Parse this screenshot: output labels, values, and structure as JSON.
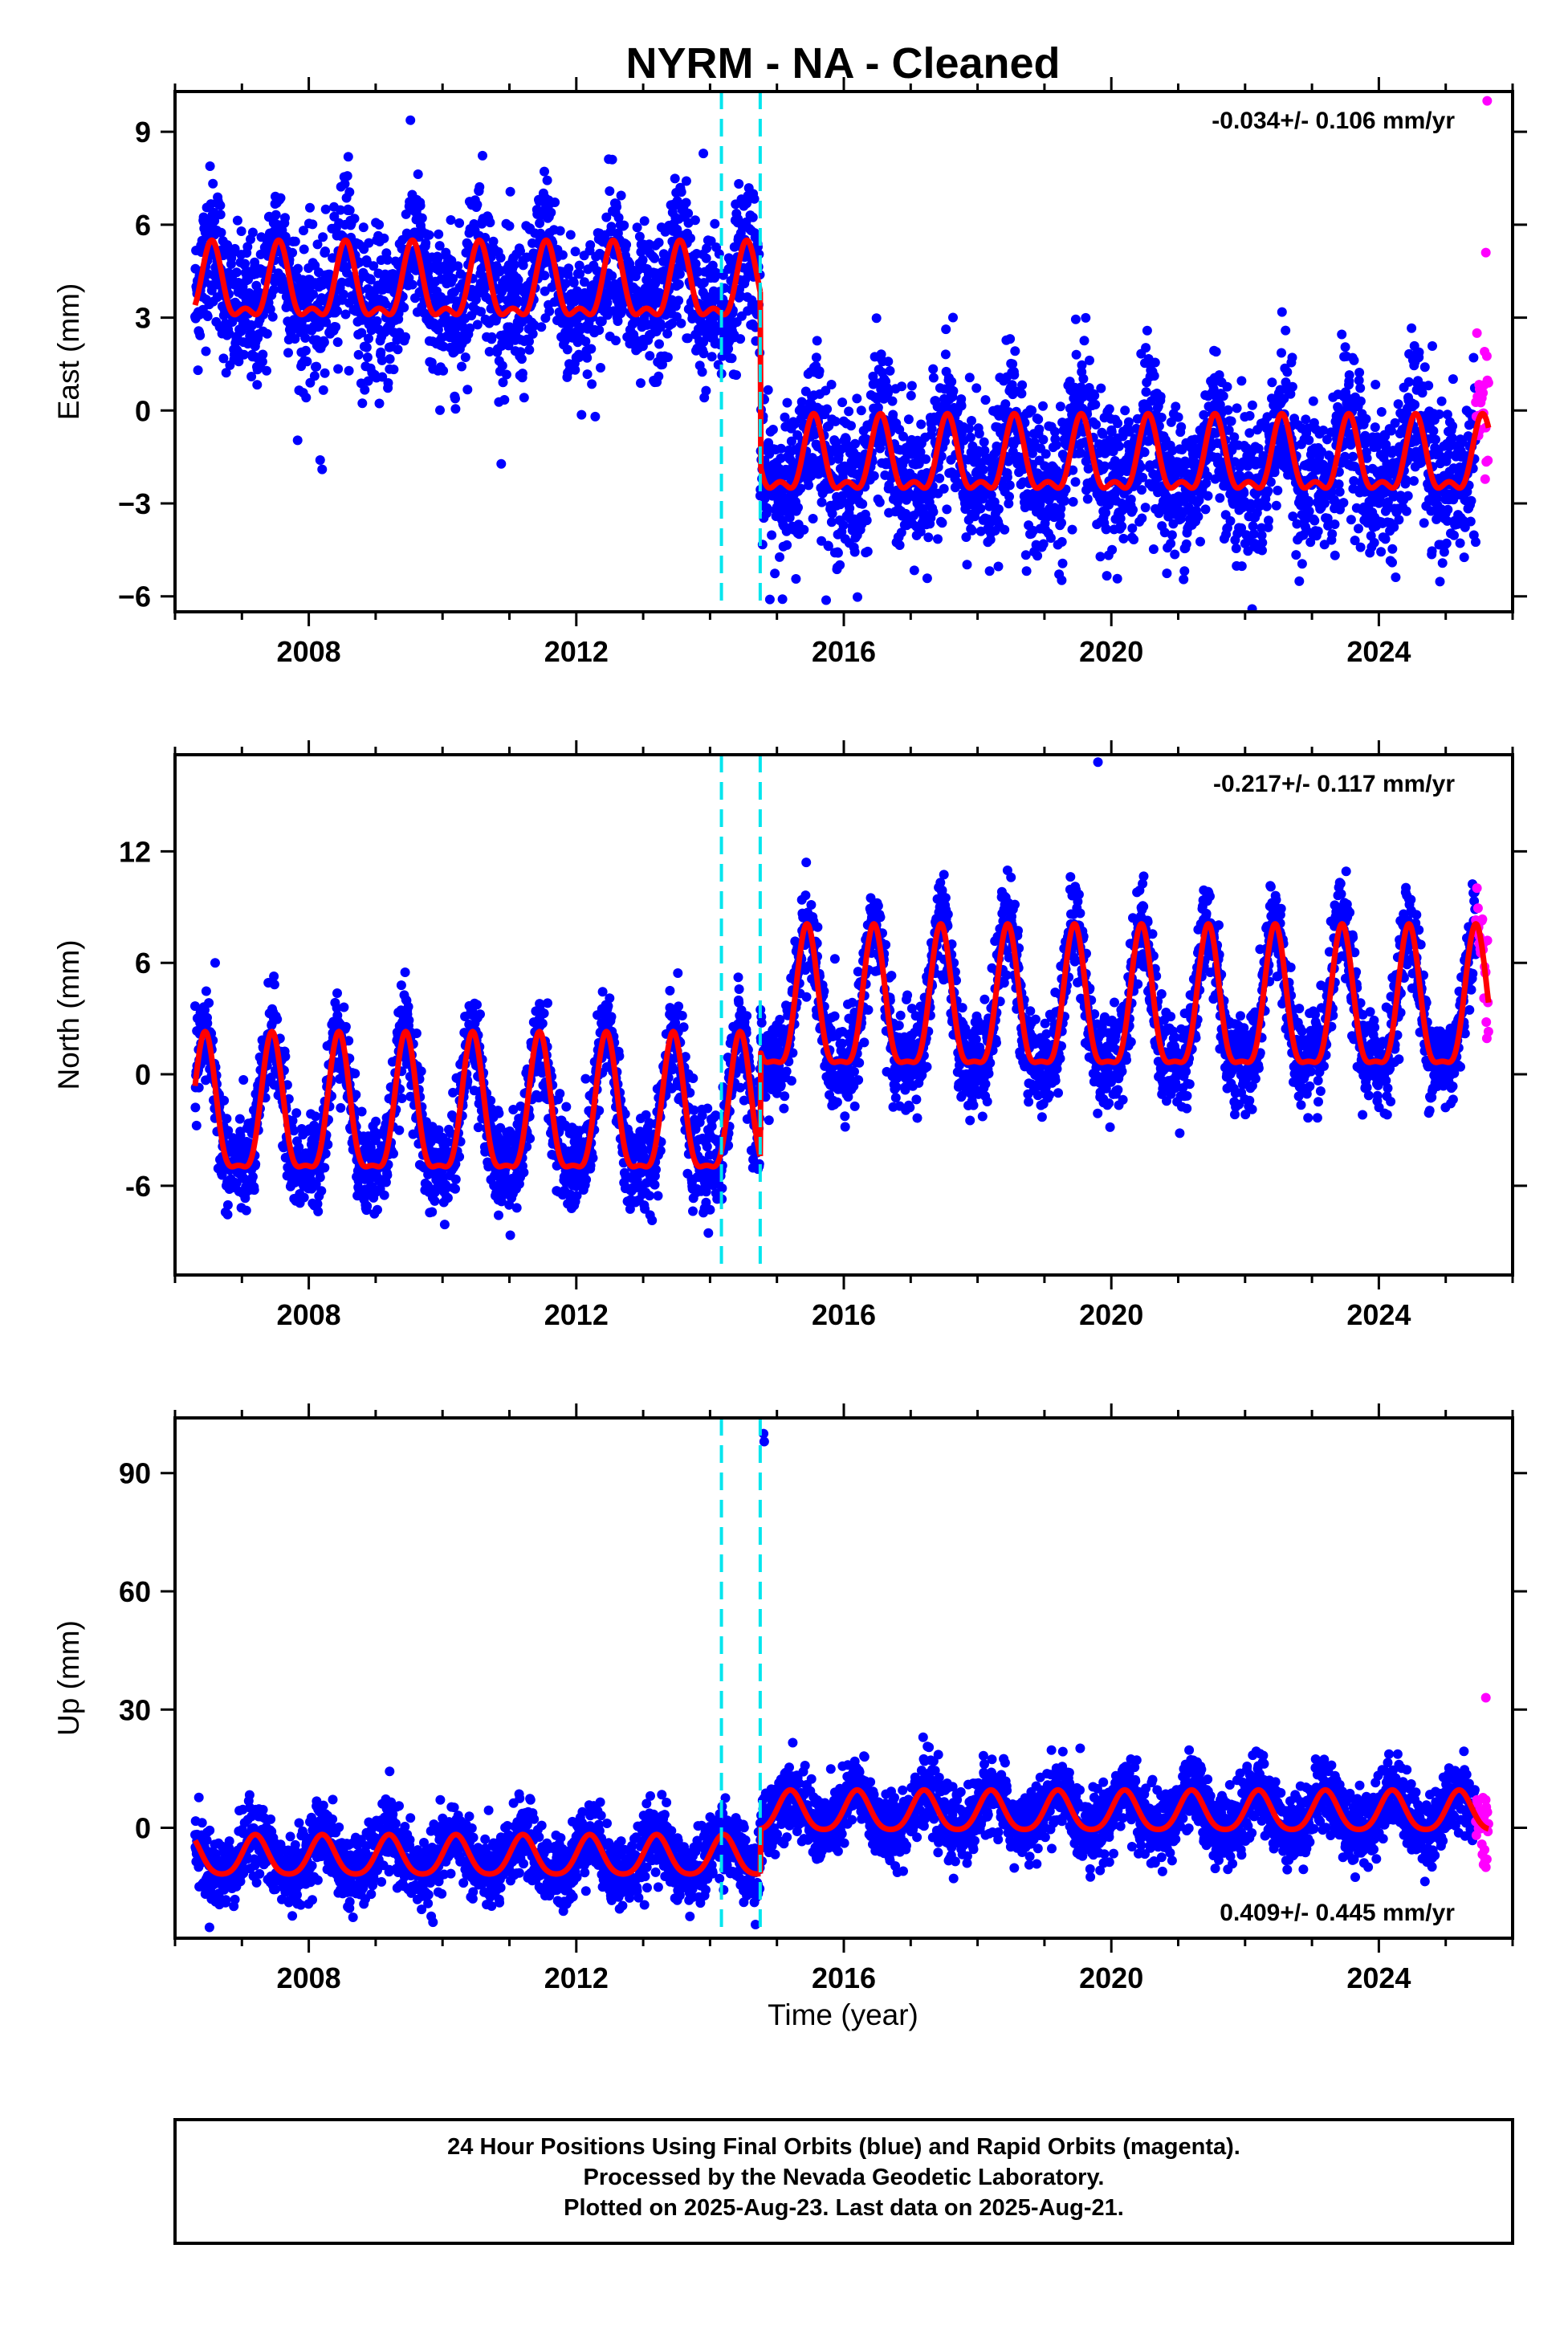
{
  "title": "NYRM  - NA - Cleaned",
  "xlabel": "Time (year)",
  "footer": [
    "24 Hour Positions Using Final Orbits (blue) and Rapid Orbits (magenta).",
    "Processed by the Nevada Geodetic Laboratory.",
    "Plotted on 2025-Aug-23. Last data on 2025-Aug-21."
  ],
  "colors": {
    "final": "#0000ff",
    "rapid": "#ff00ff",
    "model": "#ff0000",
    "steps": "#00e5ee"
  },
  "chart_data": [
    {
      "type": "scatter",
      "id": "east",
      "ylabel": "East (mm)",
      "rate": "-0.034+/- 0.106 mm/yr",
      "rate_position": "top-right",
      "xlim": [
        2006.0,
        2026.0
      ],
      "ylim": [
        -6.5,
        10.3
      ],
      "xticks": [
        2008,
        2012,
        2016,
        2020,
        2024
      ],
      "yticks": [
        -6,
        -3,
        0,
        3,
        6,
        9
      ],
      "ytick_labels": [
        "−6",
        "−3",
        "0",
        "3",
        "6",
        "9"
      ],
      "step_lines": [
        2014.17,
        2014.75
      ],
      "data_start": 2006.3,
      "data_end": 2025.64,
      "rapid_start": 2025.45,
      "model_segments": [
        {
          "x0": 2006.3,
          "x1": 2014.75,
          "mean": 3.9,
          "annual_amp": 1.1,
          "semiannual_amp": 0.5,
          "phase": 0.55
        },
        {
          "x0": 2014.75,
          "x1": 2025.64,
          "mean": -1.7,
          "annual_amp": 1.1,
          "semiannual_amp": 0.5,
          "phase": 0.55
        }
      ],
      "scatter_sd": 1.2,
      "outliers": [
        [
          2008.17,
          -1.6
        ],
        [
          2008.2,
          -1.9
        ],
        [
          2013.9,
          8.3
        ],
        [
          2025.62,
          10.0
        ],
        [
          2025.6,
          5.1
        ]
      ]
    },
    {
      "type": "scatter",
      "id": "north",
      "ylabel": "North (mm)",
      "rate": "-0.217+/- 0.117 mm/yr",
      "rate_position": "top-right",
      "xlim": [
        2006.0,
        2026.0
      ],
      "ylim": [
        -10.8,
        17.2
      ],
      "xticks": [
        2008,
        2012,
        2016,
        2020,
        2024
      ],
      "yticks": [
        -6,
        0,
        6,
        12
      ],
      "ytick_labels": [
        "-6",
        "0",
        "6",
        "12"
      ],
      "step_lines": [
        2014.17,
        2014.75
      ],
      "data_start": 2006.3,
      "data_end": 2025.64,
      "rapid_start": 2025.45,
      "model_segments": [
        {
          "x0": 2006.3,
          "x1": 2014.75,
          "mean": -2.4,
          "annual_amp": 3.6,
          "semiannual_amp": 1.1,
          "phase": 0.45
        },
        {
          "x0": 2014.75,
          "x1": 2025.64,
          "mean": 3.3,
          "annual_amp": 3.7,
          "semiannual_amp": 1.1,
          "phase": 0.45
        }
      ],
      "scatter_sd": 1.3,
      "outliers": [
        [
          2019.8,
          16.8
        ],
        [
          2006.6,
          6.0
        ],
        [
          2013.4,
          4.5
        ]
      ]
    },
    {
      "type": "scatter",
      "id": "up",
      "ylabel": "Up (mm)",
      "rate": "0.409+/- 0.445 mm/yr",
      "rate_position": "bottom-right",
      "xlim": [
        2006.0,
        2026.0
      ],
      "ylim": [
        -28.0,
        104.0
      ],
      "xticks": [
        2008,
        2012,
        2016,
        2020,
        2024
      ],
      "yticks": [
        0,
        30,
        60,
        90
      ],
      "ytick_labels": [
        "0",
        "30",
        "60",
        "90"
      ],
      "step_lines": [
        2014.17,
        2014.75
      ],
      "data_start": 2006.3,
      "data_end": 2025.64,
      "rapid_start": 2025.45,
      "model_segments": [
        {
          "x0": 2006.3,
          "x1": 2014.75,
          "mean": -7.5,
          "annual_amp": 5.0,
          "semiannual_amp": 0.8,
          "phase": 0.2
        },
        {
          "x0": 2014.75,
          "x1": 2025.64,
          "mean": 3.8,
          "annual_amp": 5.0,
          "semiannual_amp": 0.8,
          "phase": 0.2
        }
      ],
      "scatter_sd": 4.5,
      "outliers": [
        [
          2014.8,
          100.0
        ],
        [
          2014.81,
          98.0
        ],
        [
          2025.6,
          33.0
        ],
        [
          2025.6,
          -10.0
        ]
      ]
    }
  ]
}
